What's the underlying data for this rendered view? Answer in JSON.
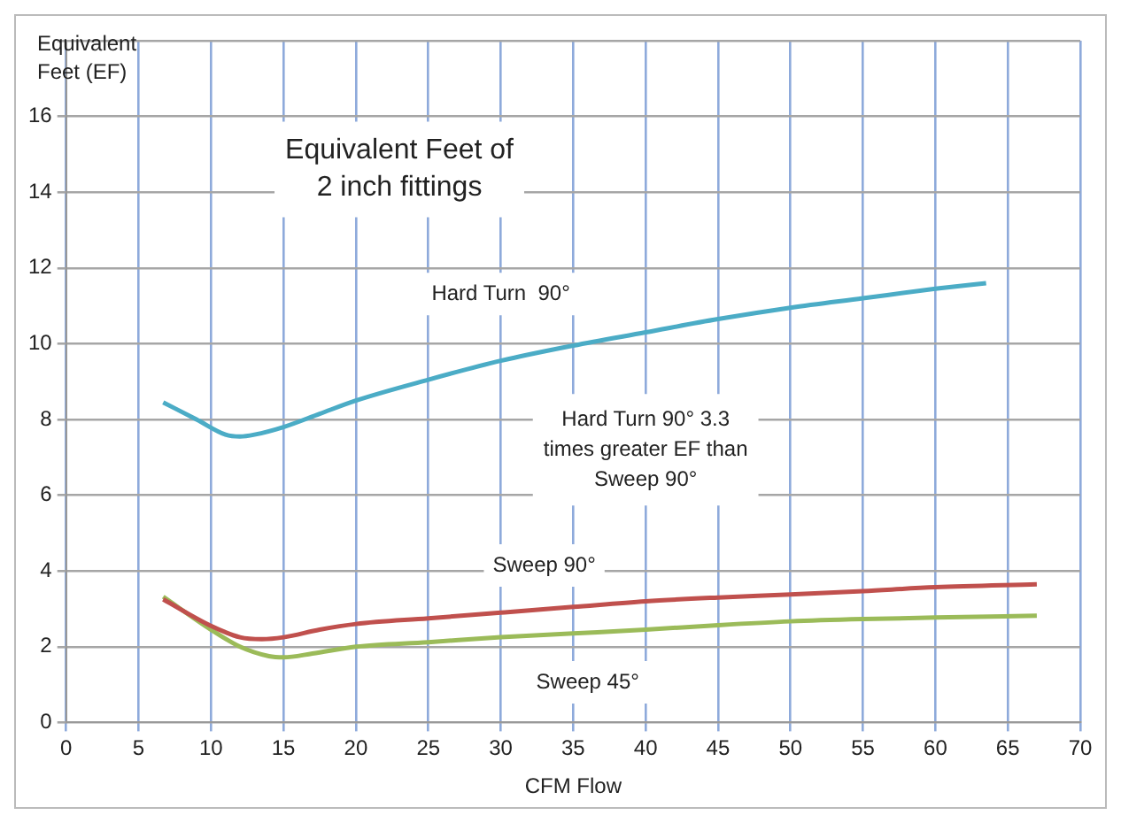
{
  "chart_data": {
    "type": "line",
    "title": "Equivalent Feet of 2 inch fittings",
    "xlabel": "CFM Flow",
    "ylabel": "Equivalent Feet (EF)",
    "annotations": [
      "Hard Turn 90° 3.3 times greater EF than Sweep 90°"
    ],
    "xlim": [
      0,
      70
    ],
    "xticks": [
      0,
      5,
      10,
      15,
      20,
      25,
      30,
      35,
      40,
      45,
      50,
      55,
      60,
      65,
      70
    ],
    "ylim": [
      0,
      18
    ],
    "yticks": [
      0,
      2,
      4,
      6,
      8,
      10,
      12,
      14,
      16,
      {
        "value": 18,
        "label": null
      }
    ],
    "grid": true,
    "legend": false,
    "marker": "none",
    "line_style": "solid",
    "series": [
      {
        "name": "Hard Turn  90°",
        "color": "#4bacc6",
        "x": [
          6.7,
          9,
          11,
          12,
          13,
          15,
          17.5,
          20,
          25,
          30,
          35,
          40,
          45,
          50,
          55,
          60,
          63.5
        ],
        "values": [
          8.45,
          8.0,
          7.6,
          7.55,
          7.6,
          7.8,
          8.15,
          8.5,
          9.05,
          9.55,
          9.95,
          10.3,
          10.65,
          10.95,
          11.2,
          11.45,
          11.6
        ]
      },
      {
        "name": "Sweep 90°",
        "color": "#c0504d",
        "x": [
          6.7,
          10,
          12,
          13.5,
          15,
          17.5,
          20,
          25,
          30,
          35,
          40,
          45,
          50,
          55,
          60,
          67
        ],
        "values": [
          3.25,
          2.55,
          2.25,
          2.2,
          2.25,
          2.45,
          2.6,
          2.75,
          2.9,
          3.05,
          3.2,
          3.3,
          3.38,
          3.47,
          3.57,
          3.65
        ]
      },
      {
        "name": "Sweep 45°",
        "color": "#9bbb59",
        "x": [
          6.7,
          10,
          12,
          14,
          15,
          17,
          20,
          25,
          30,
          35,
          40,
          45,
          50,
          55,
          60,
          67
        ],
        "values": [
          3.32,
          2.45,
          2.0,
          1.75,
          1.72,
          1.82,
          2.0,
          2.12,
          2.25,
          2.35,
          2.45,
          2.57,
          2.67,
          2.73,
          2.77,
          2.82
        ]
      }
    ]
  }
}
